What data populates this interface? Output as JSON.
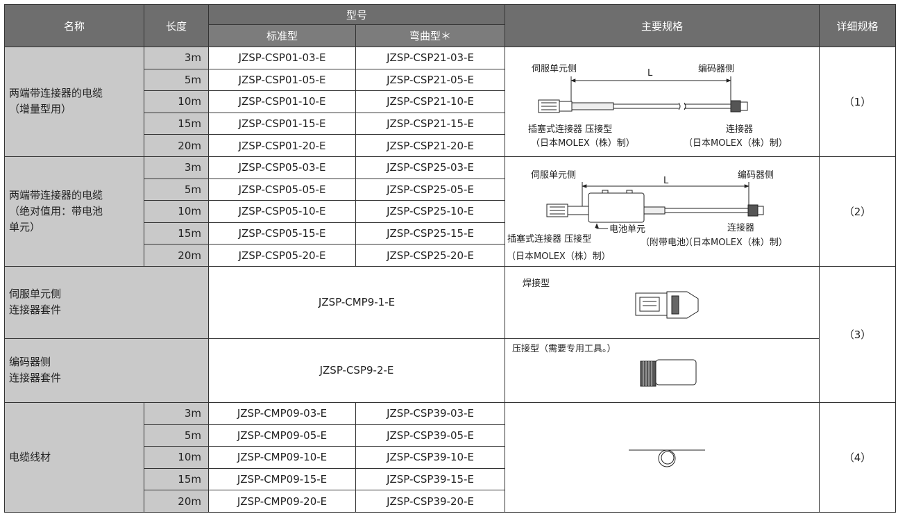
{
  "header": {
    "name": "名称",
    "length": "长度",
    "model": "型号",
    "standard": "标准型",
    "bent": "弯曲型＊",
    "spec": "主要规格",
    "detail": "详细规格"
  },
  "groups": [
    {
      "name": [
        "两端带连接器的电缆",
        "（增量型用）"
      ],
      "rows": [
        {
          "length": "3m",
          "standard": "JZSP-CSP01-03-E",
          "bent": "JZSP-CSP21-03-E"
        },
        {
          "length": "5m",
          "standard": "JZSP-CSP01-05-E",
          "bent": "JZSP-CSP21-05-E"
        },
        {
          "length": "10m",
          "standard": "JZSP-CSP01-10-E",
          "bent": "JZSP-CSP21-10-E"
        },
        {
          "length": "15m",
          "standard": "JZSP-CSP01-15-E",
          "bent": "JZSP-CSP21-15-E"
        },
        {
          "length": "20m",
          "standard": "JZSP-CSP01-20-E",
          "bent": "JZSP-CSP21-20-E"
        }
      ],
      "spec_labels": [
        "伺服单元侧",
        "L",
        "编码器侧",
        "插塞式连接器 压接型",
        "（日本MOLEX（株）制）",
        "连接器",
        "（日本MOLEX（株）制）"
      ],
      "detail": "（1）"
    },
    {
      "name": [
        "两端带连接器的电缆",
        "（绝对值用：带电池",
        "单元）"
      ],
      "rows": [
        {
          "length": "3m",
          "standard": "JZSP-CSP05-03-E",
          "bent": "JZSP-CSP25-03-E"
        },
        {
          "length": "5m",
          "standard": "JZSP-CSP05-05-E",
          "bent": "JZSP-CSP25-05-E"
        },
        {
          "length": "10m",
          "standard": "JZSP-CSP05-10-E",
          "bent": "JZSP-CSP25-10-E"
        },
        {
          "length": "15m",
          "standard": "JZSP-CSP05-15-E",
          "bent": "JZSP-CSP25-15-E"
        },
        {
          "length": "20m",
          "standard": "JZSP-CSP05-20-E",
          "bent": "JZSP-CSP25-20-E"
        }
      ],
      "spec_labels": [
        "伺服单元侧",
        "L",
        "编码器侧",
        "插塞式连接器 压接型",
        "电池单元",
        "（附带电池）",
        "连接器",
        "（日本MOLEX（株）制）",
        "（日本MOLEX（株）制）"
      ],
      "detail": "（2）"
    },
    {
      "name": [
        "伺服单元侧",
        "连接器套件"
      ],
      "model": "JZSP-CMP9-1-E",
      "spec_labels": [
        "焊接型"
      ],
      "detail": "（3）"
    },
    {
      "name": [
        "编码器侧",
        "连接器套件"
      ],
      "model": "JZSP-CSP9-2-E",
      "spec_labels": [
        "压接型（需要专用工具。）"
      ]
    },
    {
      "name": [
        "电缆线材"
      ],
      "rows": [
        {
          "length": "3m",
          "standard": "JZSP-CMP09-03-E",
          "bent": "JZSP-CSP39-03-E"
        },
        {
          "length": "5m",
          "standard": "JZSP-CMP09-05-E",
          "bent": "JZSP-CSP39-05-E"
        },
        {
          "length": "10m",
          "standard": "JZSP-CMP09-10-E",
          "bent": "JZSP-CSP39-10-E"
        },
        {
          "length": "15m",
          "standard": "JZSP-CMP09-15-E",
          "bent": "JZSP-CSP39-15-E"
        },
        {
          "length": "20m",
          "standard": "JZSP-CMP09-20-E",
          "bent": "JZSP-CSP39-20-E"
        }
      ],
      "detail": "（4）"
    }
  ]
}
